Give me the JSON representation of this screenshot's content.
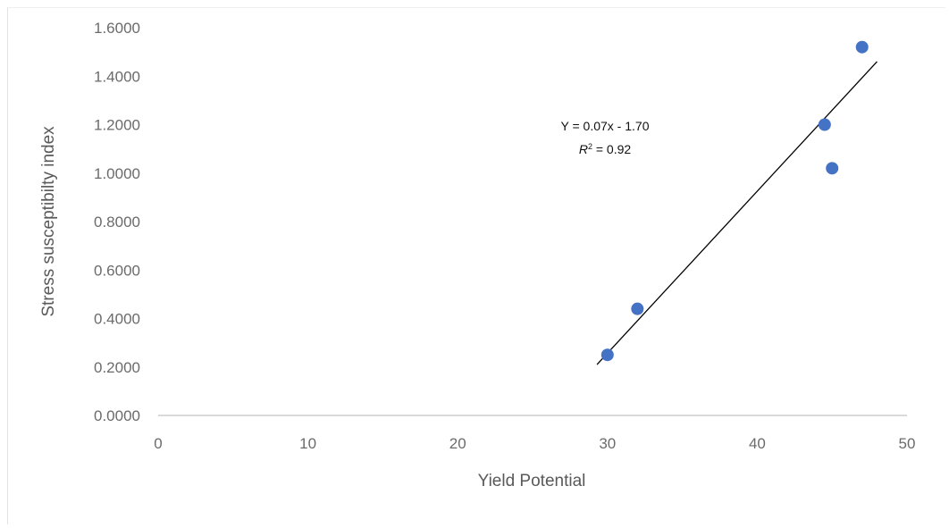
{
  "chart_data": {
    "type": "scatter",
    "xlabel": "Yield Potential",
    "ylabel": "Stress susceptibilty index",
    "xlim": [
      0,
      50
    ],
    "ylim": [
      0,
      1.6
    ],
    "x_ticks": [
      0,
      10,
      20,
      30,
      40,
      50
    ],
    "y_ticks": [
      "0.0000",
      "0.2000",
      "0.4000",
      "0.6000",
      "0.8000",
      "1.0000",
      "1.2000",
      "1.4000",
      "1.6000"
    ],
    "grid": false,
    "legend": "none",
    "points": [
      {
        "x": 30.0,
        "y": 0.25
      },
      {
        "x": 32.0,
        "y": 0.44
      },
      {
        "x": 44.5,
        "y": 1.2
      },
      {
        "x": 45.0,
        "y": 1.02
      },
      {
        "x": 47.0,
        "y": 1.52
      }
    ],
    "trendline": {
      "type": "linear",
      "slope": 0.07,
      "intercept": -1.7,
      "x_range": [
        29.3,
        48.0
      ],
      "equation_label": "Y = 0.07x - 1.70",
      "r2_prefix": "R",
      "r2_sup": "2",
      "r2_value": " = 0.92"
    },
    "colors": {
      "marker": "#4472c4",
      "trendline": "#000000",
      "axis": "#d9d9d9"
    }
  }
}
